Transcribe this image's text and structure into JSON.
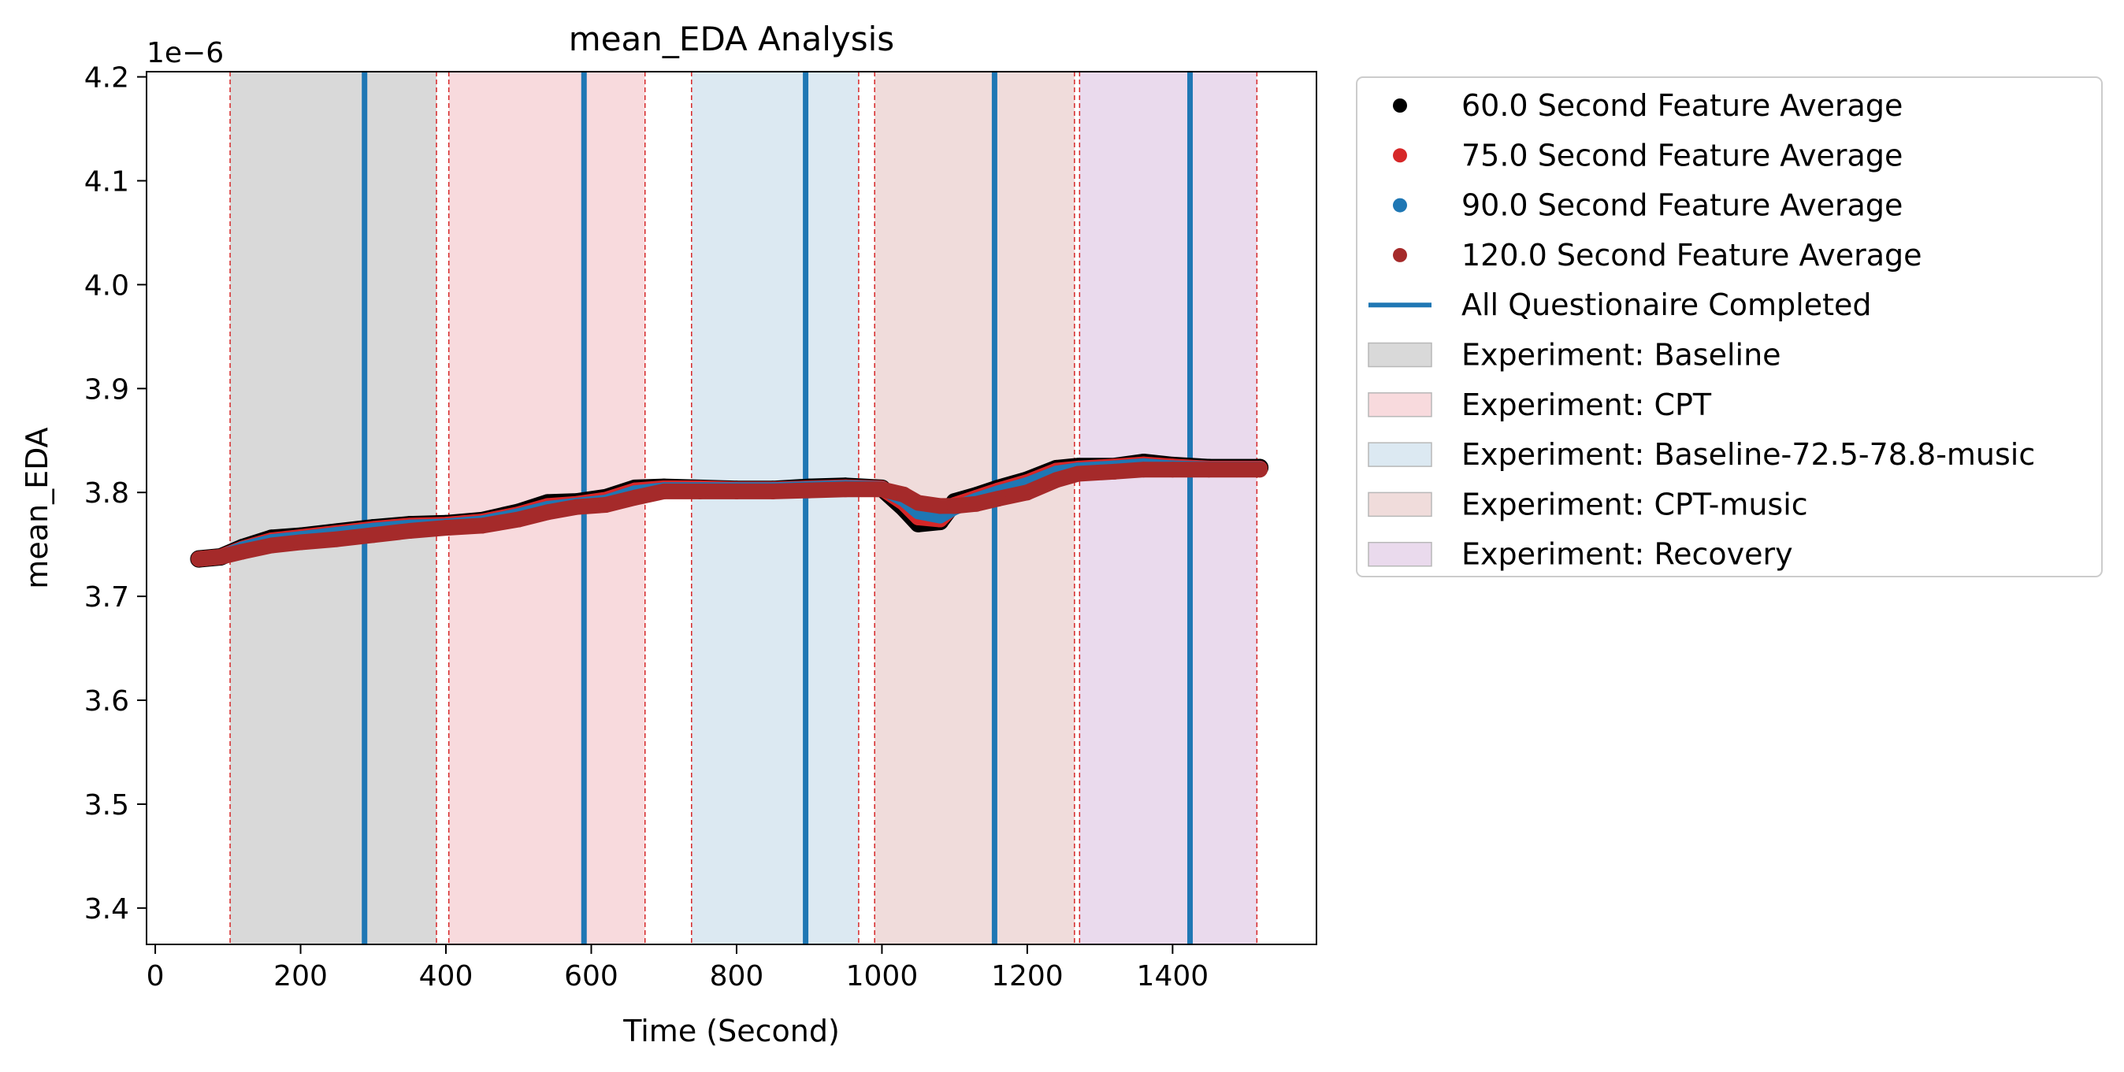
{
  "chart_data": {
    "type": "line",
    "title": "mean_EDA Analysis",
    "xlabel": "Time (Second)",
    "ylabel": "mean_EDA",
    "y_offset_text": "1e−6",
    "xlim": [
      -12,
      1598
    ],
    "ylim": [
      3.365,
      4.205
    ],
    "x_ticks": [
      0,
      200,
      400,
      600,
      800,
      1000,
      1200,
      1400
    ],
    "y_ticks": [
      3.4,
      3.5,
      3.6,
      3.7,
      3.8,
      3.9,
      4.0,
      4.1,
      4.2
    ],
    "y_tick_labels": [
      "3.4",
      "3.5",
      "3.6",
      "3.7",
      "3.8",
      "3.9",
      "4.0",
      "4.1",
      "4.2"
    ],
    "grid": false,
    "legend_position": "outside-right-top",
    "phases": [
      {
        "name": "Experiment: Baseline",
        "start": 103,
        "end": 387,
        "color": "#d9d9d9"
      },
      {
        "name": "Experiment: CPT",
        "start": 404,
        "end": 674,
        "color": "#f8dadd"
      },
      {
        "name": "Experiment: Baseline-72.5-78.8-music",
        "start": 738,
        "end": 968,
        "color": "#dce9f2"
      },
      {
        "name": "Experiment: CPT-music",
        "start": 990,
        "end": 1265,
        "color": "#f0dcdb"
      },
      {
        "name": "Experiment: Recovery",
        "start": 1272,
        "end": 1516,
        "color": "#eadaed"
      }
    ],
    "questionnaire_lines": {
      "name": "All Questionaire Completed",
      "color": "#1f77b4",
      "x": [
        288,
        590,
        895,
        1155,
        1424
      ]
    },
    "series": [
      {
        "name": "60.0 Second Feature Average",
        "color": "#000000",
        "x": [
          60,
          90,
          120,
          160,
          200,
          250,
          300,
          350,
          400,
          450,
          500,
          540,
          580,
          620,
          660,
          700,
          750,
          800,
          850,
          900,
          950,
          1000,
          1030,
          1050,
          1080,
          1100,
          1130,
          1160,
          1200,
          1240,
          1270,
          1320,
          1360,
          1400,
          1450,
          1520
        ],
        "values": [
          3.736,
          3.738,
          3.747,
          3.756,
          3.758,
          3.762,
          3.766,
          3.769,
          3.77,
          3.773,
          3.781,
          3.79,
          3.791,
          3.795,
          3.804,
          3.805,
          3.804,
          3.803,
          3.803,
          3.805,
          3.806,
          3.804,
          3.785,
          3.77,
          3.772,
          3.791,
          3.797,
          3.804,
          3.812,
          3.823,
          3.825,
          3.825,
          3.829,
          3.826,
          3.824,
          3.824
        ]
      },
      {
        "name": "75.0 Second Feature Average",
        "color": "#d62728",
        "x": [
          60,
          90,
          120,
          160,
          200,
          250,
          300,
          350,
          400,
          450,
          500,
          540,
          580,
          620,
          660,
          700,
          750,
          800,
          850,
          900,
          950,
          1000,
          1030,
          1050,
          1080,
          1100,
          1130,
          1160,
          1200,
          1240,
          1270,
          1320,
          1360,
          1400,
          1450,
          1520
        ],
        "values": [
          3.736,
          3.738,
          3.746,
          3.754,
          3.757,
          3.761,
          3.765,
          3.768,
          3.769,
          3.772,
          3.779,
          3.787,
          3.789,
          3.793,
          3.802,
          3.804,
          3.804,
          3.803,
          3.803,
          3.804,
          3.805,
          3.804,
          3.79,
          3.776,
          3.774,
          3.788,
          3.795,
          3.802,
          3.81,
          3.821,
          3.823,
          3.825,
          3.827,
          3.825,
          3.823,
          3.823
        ]
      },
      {
        "name": "90.0 Second Feature Average",
        "color": "#1f77b4",
        "x": [
          60,
          90,
          120,
          160,
          200,
          250,
          300,
          350,
          400,
          450,
          500,
          540,
          580,
          620,
          660,
          700,
          750,
          800,
          850,
          900,
          950,
          1000,
          1030,
          1050,
          1080,
          1100,
          1130,
          1160,
          1200,
          1240,
          1270,
          1320,
          1360,
          1400,
          1450,
          1520
        ],
        "values": [
          3.736,
          3.738,
          3.746,
          3.753,
          3.756,
          3.76,
          3.764,
          3.767,
          3.768,
          3.771,
          3.778,
          3.785,
          3.788,
          3.791,
          3.8,
          3.803,
          3.803,
          3.803,
          3.803,
          3.804,
          3.805,
          3.804,
          3.793,
          3.781,
          3.777,
          3.785,
          3.793,
          3.8,
          3.808,
          3.819,
          3.822,
          3.824,
          3.826,
          3.824,
          3.823,
          3.823
        ]
      },
      {
        "name": "120.0 Second Feature Average",
        "color": "#a52a2a",
        "x": [
          60,
          90,
          120,
          160,
          200,
          250,
          300,
          350,
          400,
          450,
          500,
          540,
          580,
          620,
          660,
          700,
          750,
          800,
          850,
          900,
          950,
          1000,
          1030,
          1050,
          1080,
          1100,
          1130,
          1160,
          1200,
          1240,
          1270,
          1320,
          1360,
          1400,
          1450,
          1520
        ],
        "values": [
          3.736,
          3.738,
          3.743,
          3.749,
          3.752,
          3.755,
          3.759,
          3.763,
          3.766,
          3.768,
          3.774,
          3.781,
          3.786,
          3.788,
          3.795,
          3.801,
          3.801,
          3.801,
          3.801,
          3.802,
          3.803,
          3.803,
          3.798,
          3.79,
          3.787,
          3.787,
          3.789,
          3.794,
          3.8,
          3.812,
          3.818,
          3.82,
          3.822,
          3.822,
          3.822,
          3.822
        ]
      }
    ]
  }
}
